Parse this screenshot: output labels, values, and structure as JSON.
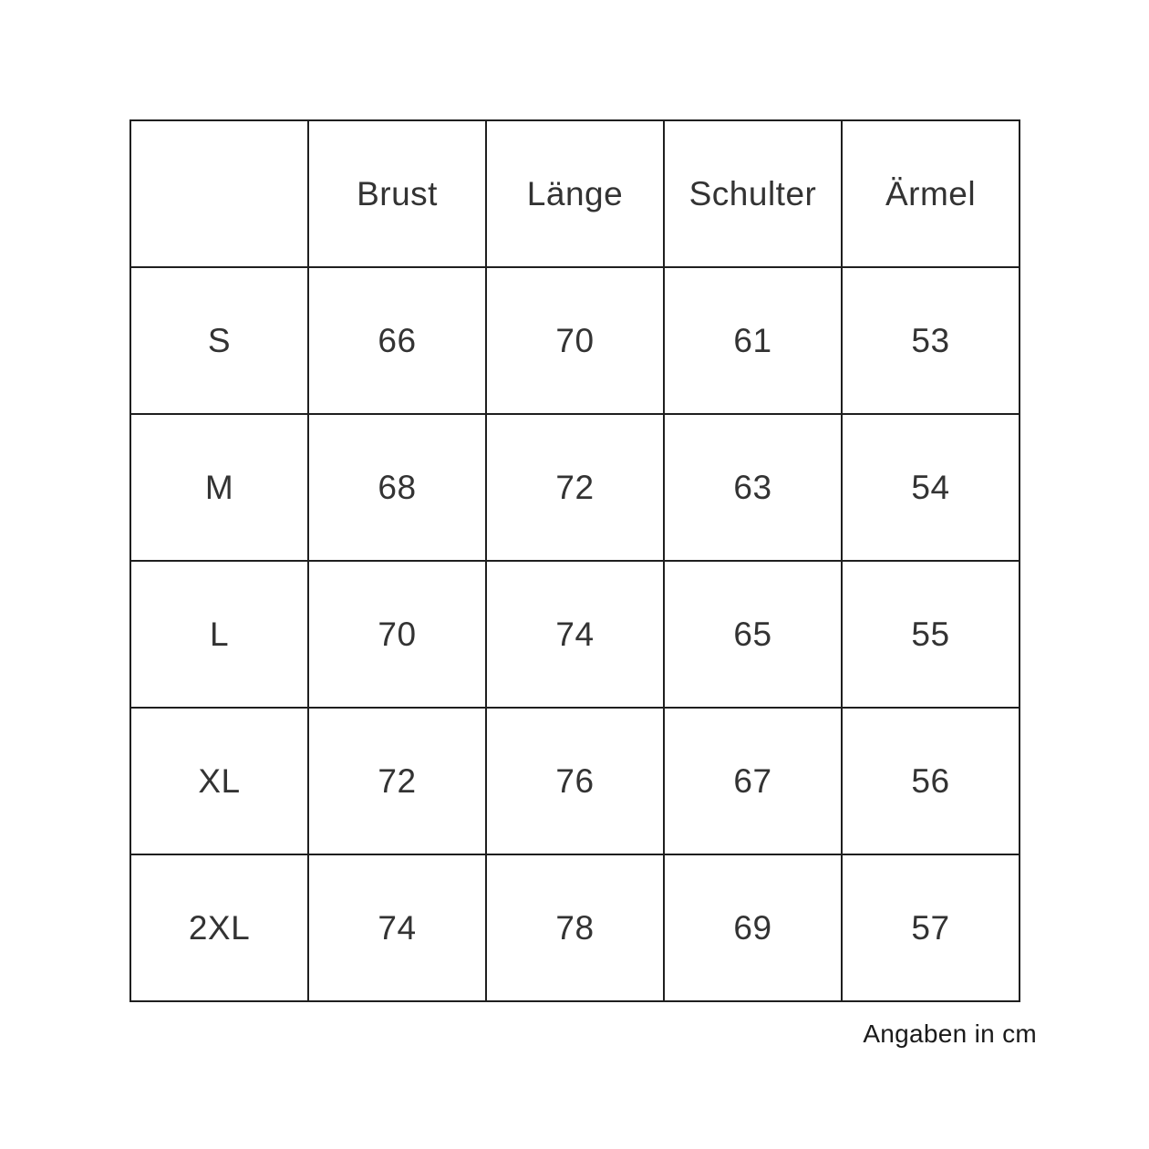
{
  "chart_data": {
    "type": "table",
    "columns": [
      "",
      "Brust",
      "Länge",
      "Schulter",
      "Ärmel"
    ],
    "rows": [
      {
        "size": "S",
        "values": [
          "66",
          "70",
          "61",
          "53"
        ]
      },
      {
        "size": "M",
        "values": [
          "68",
          "72",
          "63",
          "54"
        ]
      },
      {
        "size": "L",
        "values": [
          "70",
          "74",
          "65",
          "55"
        ]
      },
      {
        "size": "XL",
        "values": [
          "72",
          "76",
          "67",
          "56"
        ]
      },
      {
        "size": "2XL",
        "values": [
          "74",
          "78",
          "69",
          "57"
        ]
      }
    ],
    "caption": "Angaben in cm"
  },
  "colors": {
    "border": "#1f1f1f",
    "text": "#333333",
    "background": "#ffffff"
  }
}
